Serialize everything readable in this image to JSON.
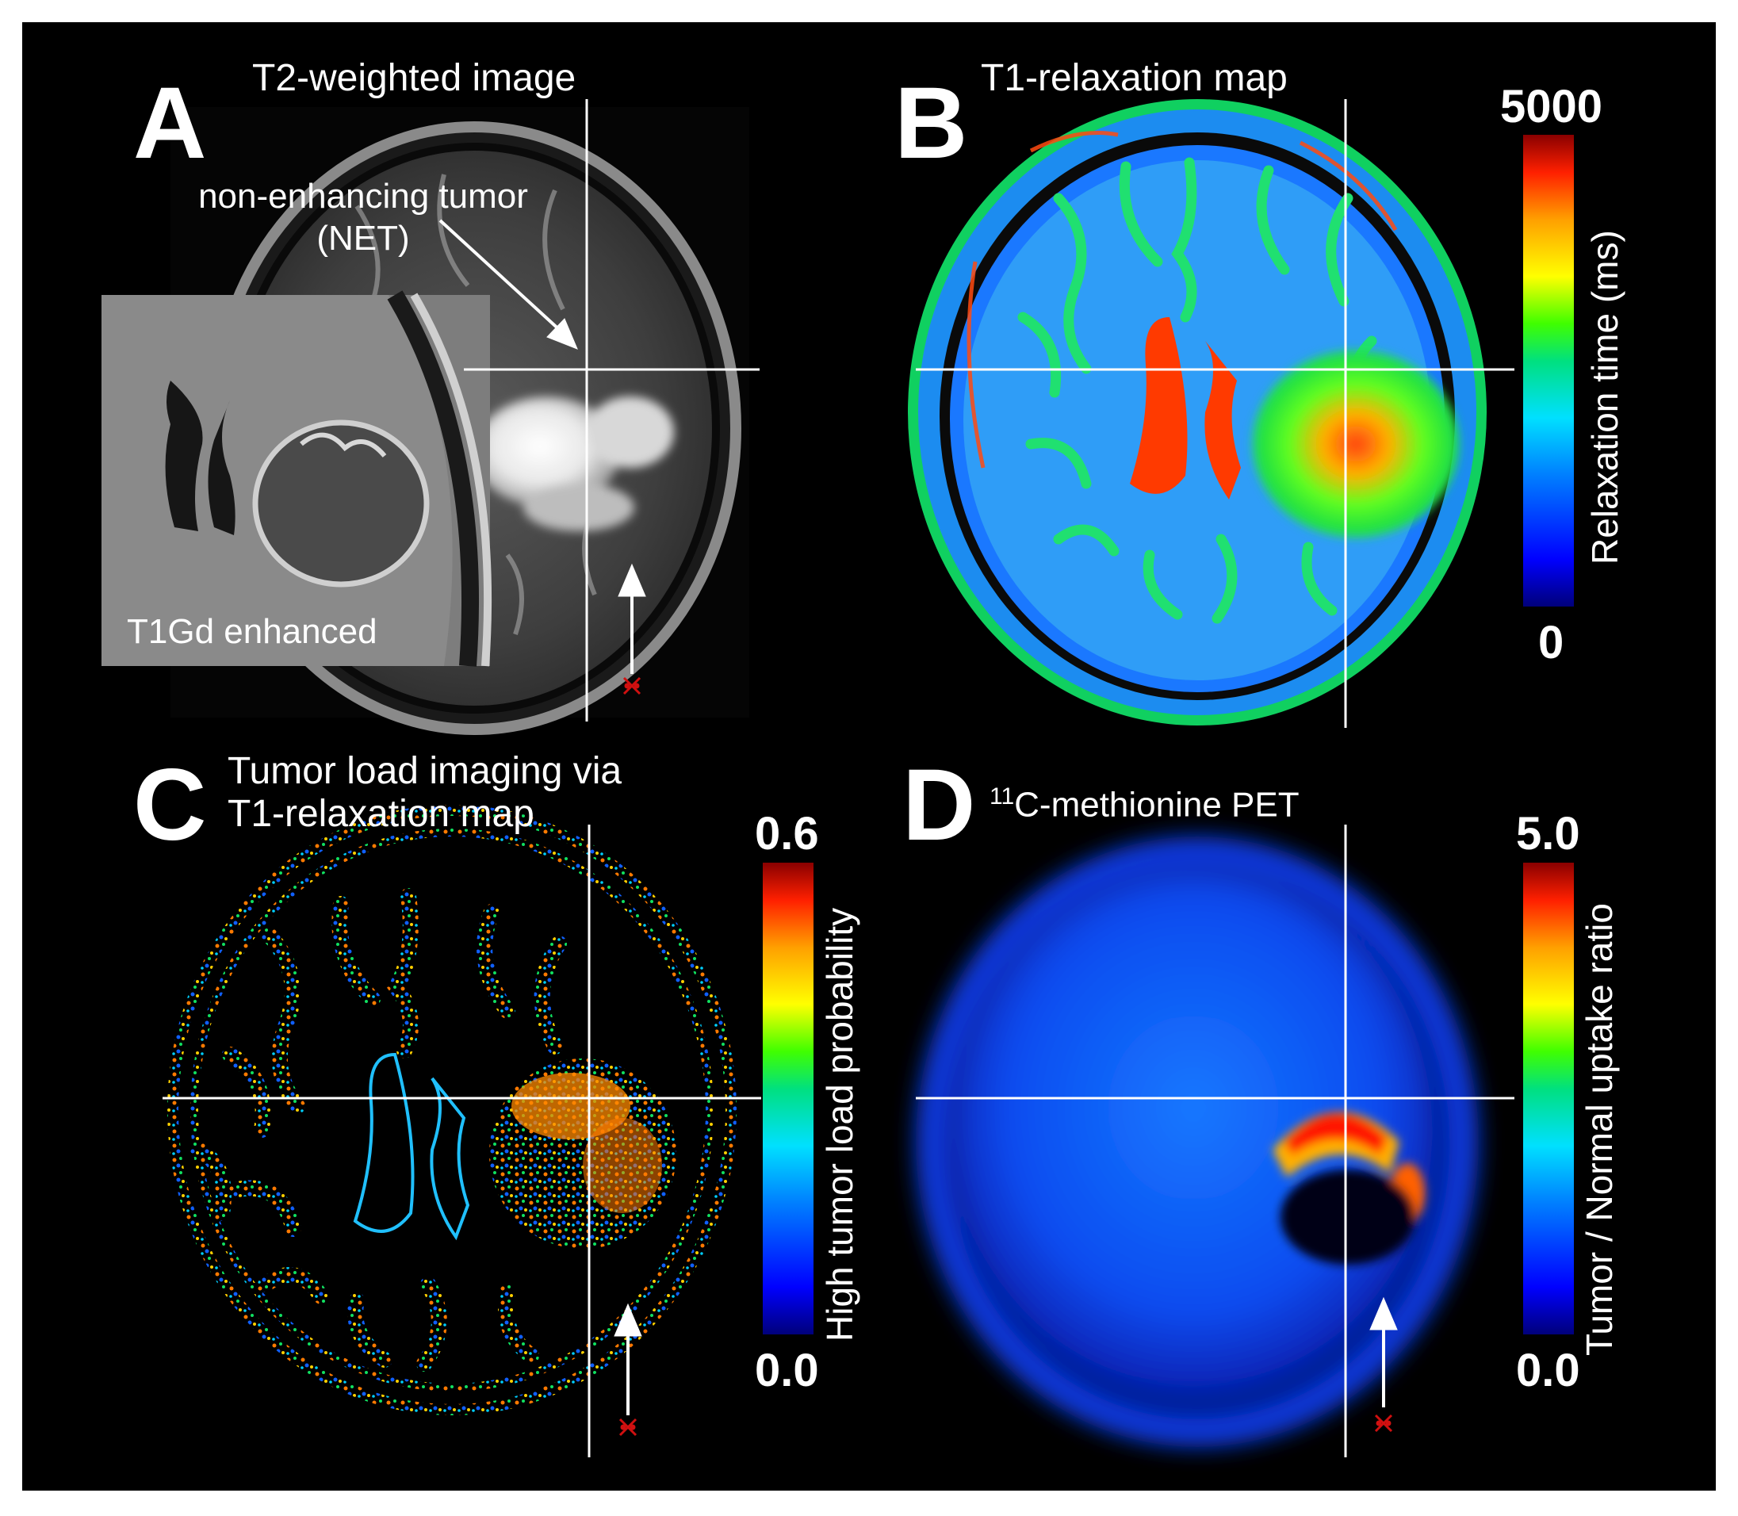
{
  "panels": {
    "a": {
      "letter": "A",
      "title": "T2-weighted image",
      "annotation_line1": "non-enhancing tumor",
      "annotation_line2": "(NET)",
      "inset_label": "T1Gd enhanced"
    },
    "b": {
      "letter": "B",
      "title": "T1-relaxation map",
      "colorbar_max": "5000",
      "colorbar_min": "0",
      "colorbar_label": "Relaxation time (ms)"
    },
    "c": {
      "letter": "C",
      "title_line1": "Tumor load imaging via",
      "title_line2": "T1-relaxation map",
      "colorbar_max": "0.6",
      "colorbar_min": "0.0",
      "colorbar_label": "High tumor load probability"
    },
    "d": {
      "letter": "D",
      "title_sup": "11",
      "title_rest": "C-methionine PET",
      "colorbar_max": "5.0",
      "colorbar_min": "0.0",
      "colorbar_label": "Tumor / Normal uptake ratio"
    }
  },
  "colors": {
    "background": "#000000",
    "crosshair": "#ffffff",
    "marker": "#d01010",
    "colormap": "jet"
  }
}
